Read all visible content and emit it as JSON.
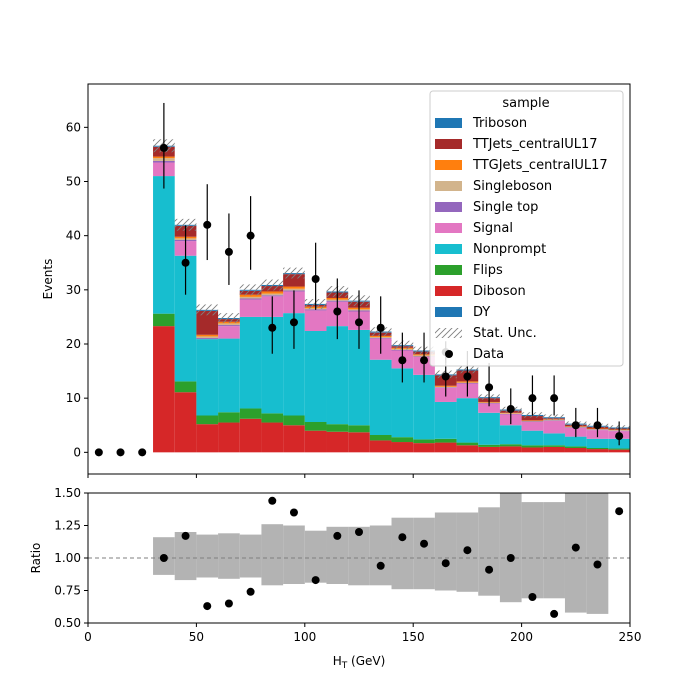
{
  "chart_data": [
    {
      "type": "bar",
      "stacked": true,
      "ylabel": "Events",
      "xlim": [
        0,
        250
      ],
      "ylim": [
        -4,
        68
      ],
      "yticks": [
        0,
        10,
        20,
        30,
        40,
        50,
        60
      ],
      "bin_edges": [
        0,
        10,
        20,
        30,
        40,
        50,
        60,
        70,
        80,
        90,
        100,
        110,
        120,
        130,
        140,
        150,
        160,
        170,
        180,
        190,
        200,
        210,
        220,
        230,
        240,
        250
      ],
      "legend": {
        "title": "sample",
        "placement": "top-right",
        "unc_label": "Stat. Unc.",
        "data_label": "Data"
      },
      "series": [
        {
          "name": "Diboson",
          "color": "#d62728",
          "values": [
            0,
            0,
            0,
            23.3,
            11.1,
            5.2,
            5.5,
            6.2,
            5.5,
            5.0,
            4.0,
            3.8,
            3.7,
            2.2,
            1.9,
            1.7,
            1.8,
            1.3,
            1.0,
            1.1,
            0.9,
            1.0,
            0.8,
            0.6,
            0.5
          ]
        },
        {
          "name": "Flips",
          "color": "#2ca02c",
          "values": [
            0,
            0,
            0,
            2.3,
            2.0,
            1.6,
            1.9,
            1.9,
            1.7,
            1.8,
            1.6,
            1.4,
            1.3,
            1.0,
            0.9,
            0.7,
            0.7,
            0.5,
            0.4,
            0.4,
            0.4,
            0.3,
            0.3,
            0.2,
            0.2
          ]
        },
        {
          "name": "Nonprompt",
          "color": "#17becf",
          "values": [
            0,
            0,
            0,
            25.4,
            23.2,
            14.1,
            13.6,
            16.9,
            17.8,
            18.9,
            16.8,
            18.1,
            17.6,
            13.9,
            12.7,
            11.9,
            6.8,
            8.2,
            5.9,
            3.5,
            2.7,
            2.2,
            1.8,
            1.7,
            1.8
          ]
        },
        {
          "name": "Signal",
          "color": "#e377c2",
          "values": [
            0,
            0,
            0,
            2.5,
            2.7,
            0,
            2.3,
            3.2,
            3.8,
            4.0,
            3.8,
            4.5,
            3.4,
            3.9,
            3.3,
            3.3,
            2.6,
            2.7,
            1.7,
            2.0,
            1.6,
            2.3,
            1.6,
            1.6,
            1.4
          ]
        },
        {
          "name": "Single top",
          "color": "#9467bd",
          "values": [
            0,
            0,
            0,
            0.3,
            0.2,
            0.2,
            0.2,
            0.2,
            0.2,
            0.2,
            0.2,
            0.2,
            0.2,
            0.1,
            0.1,
            0.1,
            0.1,
            0.1,
            0.1,
            0.1,
            0.1,
            0.1,
            0.1,
            0.1,
            0.1
          ]
        },
        {
          "name": "Singleboson",
          "color": "#d2b48c",
          "values": [
            0,
            0,
            0,
            0.5,
            0.3,
            0.3,
            0.3,
            0.3,
            0.3,
            0.3,
            0.2,
            0.2,
            0.2,
            0.2,
            0.2,
            0.2,
            0.1,
            0.1,
            0.1,
            0.1,
            0.1,
            0.1,
            0.1,
            0.1,
            0.1
          ]
        },
        {
          "name": "TTGJets_centralUL17",
          "color": "#ff7f0e",
          "values": [
            0,
            0,
            0,
            0.3,
            0.3,
            0.3,
            0.3,
            0.4,
            0.4,
            0.4,
            0.3,
            0.3,
            0.3,
            0.2,
            0.2,
            0.2,
            0.2,
            0.2,
            0.1,
            0.1,
            0.1,
            0.1,
            0.1,
            0.1,
            0.1
          ]
        },
        {
          "name": "TTJets_centralUL17",
          "color": "#a52a2a",
          "values": [
            0,
            0,
            0,
            1.8,
            2.0,
            4.4,
            0.5,
            0.7,
            1.0,
            2.3,
            0.3,
            1.0,
            1.1,
            0.6,
            0.3,
            0.5,
            1.9,
            2.0,
            0.7,
            0.4,
            0.8,
            0.2,
            0.3,
            0.3,
            0.2
          ]
        },
        {
          "name": "Triboson",
          "color": "#1f77b4",
          "values": [
            0,
            0,
            0,
            0.1,
            0.1,
            0.1,
            0.1,
            0.1,
            0.1,
            0.1,
            0.1,
            0.1,
            0.1,
            0.1,
            0.1,
            0.1,
            0.1,
            0.1,
            0.1,
            0.1,
            0.1,
            0.1,
            0.1,
            0.1,
            0.1
          ]
        },
        {
          "name": "DY",
          "color": "#1f77b4",
          "values": [
            0,
            0,
            0,
            0.1,
            0.1,
            0.1,
            0.1,
            0.1,
            0.1,
            0.1,
            0.1,
            0.1,
            0.1,
            0.1,
            0.1,
            0.1,
            0.1,
            0.1,
            0.1,
            0.1,
            0.1,
            0.1,
            0.1,
            0.1,
            0.1
          ]
        }
      ],
      "stat_unc": [
        0,
        0,
        0,
        1.2,
        1.1,
        1.0,
        0.9,
        1.0,
        1.0,
        1.0,
        0.9,
        1.0,
        1.0,
        0.8,
        0.8,
        0.7,
        0.7,
        0.7,
        0.5,
        0.5,
        0.5,
        0.5,
        0.4,
        0.4,
        0.4
      ],
      "data": {
        "x": [
          5,
          15,
          25,
          35,
          45,
          55,
          65,
          75,
          85,
          95,
          105,
          115,
          125,
          135,
          145,
          155,
          165,
          175,
          185,
          195,
          205,
          215,
          225,
          235,
          245
        ],
        "y": [
          0,
          0,
          0,
          56.2,
          35,
          42,
          37,
          40,
          23,
          24,
          32,
          26,
          24,
          23,
          17,
          17,
          14,
          14,
          12,
          8,
          10,
          10,
          5,
          5,
          3
        ],
        "err_low": [
          0,
          0,
          0,
          7.5,
          5.9,
          6.5,
          6.1,
          6.3,
          4.8,
          4.9,
          5.7,
          5.1,
          4.9,
          4.8,
          4.1,
          4.1,
          3.7,
          3.7,
          3.5,
          2.8,
          3.2,
          3.2,
          2.2,
          2.2,
          1.7
        ],
        "err_high": [
          0,
          0,
          0,
          8.3,
          6.9,
          7.5,
          7.1,
          7.3,
          5.8,
          5.9,
          6.7,
          6.1,
          5.9,
          5.8,
          5.1,
          5.1,
          4.7,
          4.7,
          4.5,
          3.8,
          4.2,
          4.2,
          3.2,
          3.2,
          2.7
        ]
      },
      "extra_point": {
        "x": 165,
        "y": 18.5,
        "err_low": 2.0,
        "err_high": 2.0
      }
    },
    {
      "type": "scatter",
      "ylabel": "Ratio",
      "xlabel_main": "H",
      "xlabel_sub": "T",
      "xlabel_unit": " (GeV)",
      "xlim": [
        0,
        250
      ],
      "ylim": [
        0.5,
        1.5
      ],
      "yticks": [
        "0.50",
        "0.75",
        "1.00",
        "1.25",
        "1.50"
      ],
      "ytick_values": [
        0.5,
        0.75,
        1.0,
        1.25,
        1.5
      ],
      "xticks": [
        0,
        50,
        100,
        150,
        200,
        250
      ],
      "reference_line": 1.0,
      "band_color": "#b3b3b3",
      "band_low": [
        1,
        1,
        1,
        0.87,
        0.83,
        0.85,
        0.84,
        0.85,
        0.79,
        0.8,
        0.81,
        0.8,
        0.79,
        0.79,
        0.76,
        0.76,
        0.75,
        0.74,
        0.71,
        0.66,
        0.69,
        0.69,
        0.58,
        0.57,
        1
      ],
      "band_high": [
        1,
        1,
        1,
        1.16,
        1.2,
        1.18,
        1.19,
        1.18,
        1.26,
        1.25,
        1.21,
        1.24,
        1.24,
        1.25,
        1.31,
        1.31,
        1.35,
        1.35,
        1.39,
        1.5,
        1.43,
        1.43,
        1.5,
        1.5,
        1
      ],
      "points": {
        "x": [
          35,
          45,
          55,
          65,
          75,
          85,
          95,
          105,
          115,
          125,
          135,
          145,
          155,
          165,
          175,
          185,
          195,
          205,
          215,
          225,
          235,
          245
        ],
        "y": [
          1.0,
          1.17,
          0.63,
          0.65,
          0.74,
          1.44,
          1.35,
          0.83,
          1.17,
          1.2,
          0.94,
          1.16,
          1.11,
          0.96,
          1.06,
          0.91,
          1.0,
          0.7,
          0.57,
          1.08,
          0.95,
          1.36
        ]
      }
    }
  ]
}
